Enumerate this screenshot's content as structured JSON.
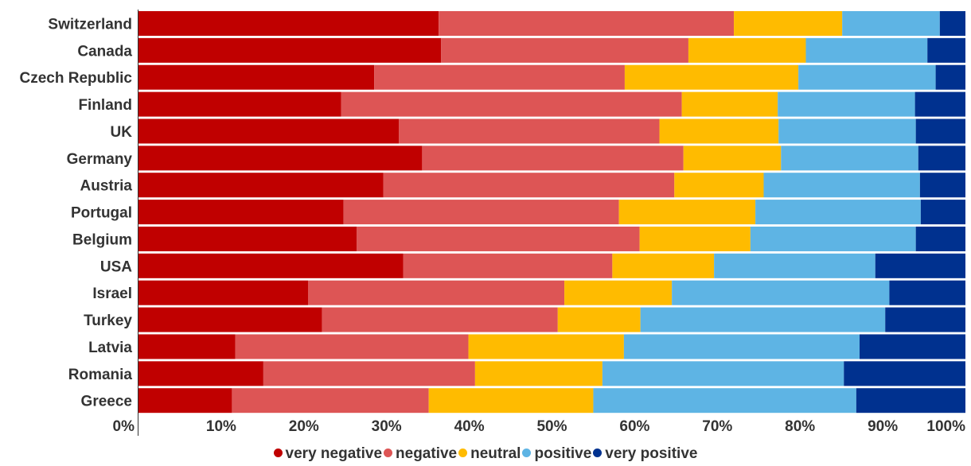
{
  "chart_data": {
    "type": "bar",
    "orientation": "horizontal",
    "stacked": true,
    "categories": [
      "Switzerland",
      "Canada",
      "Czech Republic",
      "Finland",
      "UK",
      "Germany",
      "Austria",
      "Portugal",
      "Belgium",
      "USA",
      "Israel",
      "Turkey",
      "Latvia",
      "Romania",
      "Greece"
    ],
    "series": [
      {
        "name": "very negative",
        "color": "#c00000",
        "values": [
          36.3,
          36.6,
          28.5,
          24.5,
          31.5,
          34.3,
          29.6,
          24.8,
          26.4,
          32.0,
          20.5,
          22.2,
          11.7,
          15.1,
          11.3
        ]
      },
      {
        "name": "negative",
        "color": "#dd5555",
        "values": [
          35.7,
          29.9,
          30.3,
          41.2,
          31.5,
          31.6,
          35.2,
          33.3,
          34.2,
          25.3,
          31.0,
          28.5,
          28.2,
          25.6,
          23.8
        ]
      },
      {
        "name": "neutral",
        "color": "#ffbb00",
        "values": [
          13.1,
          14.2,
          21.0,
          11.6,
          14.4,
          11.8,
          10.8,
          16.5,
          13.4,
          12.3,
          13.0,
          10.0,
          18.8,
          15.4,
          19.9
        ]
      },
      {
        "name": "positive",
        "color": "#5eb4e4",
        "values": [
          11.8,
          14.7,
          16.6,
          16.6,
          16.6,
          16.6,
          18.9,
          20.0,
          20.0,
          19.5,
          26.3,
          29.6,
          28.5,
          29.2,
          31.8
        ]
      },
      {
        "name": "very positive",
        "color": "#00318f",
        "values": [
          3.1,
          4.6,
          3.6,
          6.1,
          6.0,
          5.7,
          5.5,
          5.4,
          6.0,
          10.9,
          9.2,
          9.7,
          12.8,
          14.7,
          13.2
        ]
      }
    ],
    "xlim": [
      0,
      100
    ],
    "xticks": [
      "0%",
      "10%",
      "20%",
      "30%",
      "40%",
      "50%",
      "60%",
      "70%",
      "80%",
      "90%",
      "100%"
    ],
    "legend_position": "bottom"
  }
}
